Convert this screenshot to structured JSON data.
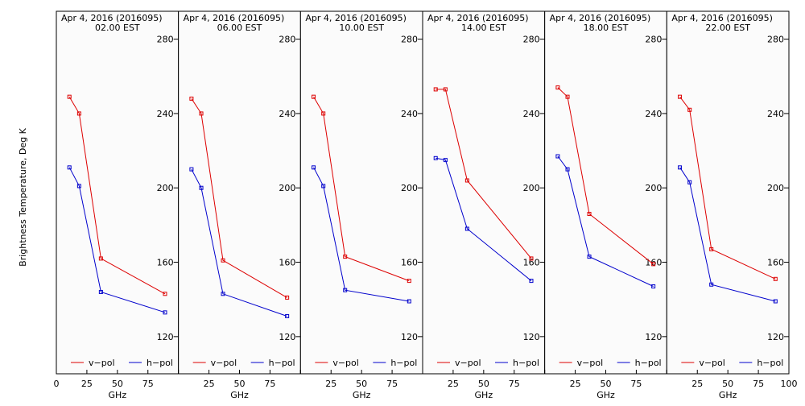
{
  "chart_data": {
    "type": "line",
    "ylabel": "Brightness Temperature, Deg K",
    "xlabel": "GHz",
    "xlim": [
      0,
      100
    ],
    "ylim": [
      100,
      295
    ],
    "xticks": [
      0,
      25,
      50,
      75,
      100
    ],
    "yticks": [
      120,
      160,
      200,
      240,
      280
    ],
    "colors": {
      "v-pol": "#dd0000",
      "h-pol": "#0000cc"
    },
    "legend": [
      {
        "name": "v-pol",
        "label": "v−pol",
        "color": "#dd0000"
      },
      {
        "name": "h-pol",
        "label": "h−pol",
        "color": "#0000cc"
      }
    ],
    "x": [
      10.7,
      18.7,
      36.5,
      89.0
    ],
    "panels": [
      {
        "title_line1": "Apr  4, 2016 (2016095)",
        "title_line2": "02.00 EST",
        "series": [
          {
            "name": "v-pol",
            "values": [
              249,
              240,
              162,
              143
            ]
          },
          {
            "name": "h-pol",
            "values": [
              211,
              201,
              144,
              133
            ]
          }
        ]
      },
      {
        "title_line1": "Apr  4, 2016 (2016095)",
        "title_line2": "06.00 EST",
        "series": [
          {
            "name": "v-pol",
            "values": [
              248,
              240,
              161,
              141
            ]
          },
          {
            "name": "h-pol",
            "values": [
              210,
              200,
              143,
              131
            ]
          }
        ]
      },
      {
        "title_line1": "Apr  4, 2016 (2016095)",
        "title_line2": "10.00 EST",
        "series": [
          {
            "name": "v-pol",
            "values": [
              249,
              240,
              163,
              150
            ]
          },
          {
            "name": "h-pol",
            "values": [
              211,
              201,
              145,
              139
            ]
          }
        ]
      },
      {
        "title_line1": "Apr  4, 2016 (2016095)",
        "title_line2": "14.00 EST",
        "series": [
          {
            "name": "v-pol",
            "values": [
              253,
              253,
              204,
              162
            ]
          },
          {
            "name": "h-pol",
            "values": [
              216,
              215,
              178,
              150
            ]
          }
        ]
      },
      {
        "title_line1": "Apr  4, 2016 (2016095)",
        "title_line2": "18.00 EST",
        "series": [
          {
            "name": "v-pol",
            "values": [
              254,
              249,
              186,
              159
            ]
          },
          {
            "name": "h-pol",
            "values": [
              217,
              210,
              163,
              147
            ]
          }
        ]
      },
      {
        "title_line1": "Apr  4, 2016 (2016095)",
        "title_line2": "22.00 EST",
        "series": [
          {
            "name": "v-pol",
            "values": [
              249,
              242,
              167,
              151
            ]
          },
          {
            "name": "h-pol",
            "values": [
              211,
              203,
              148,
              139
            ]
          }
        ]
      }
    ]
  }
}
